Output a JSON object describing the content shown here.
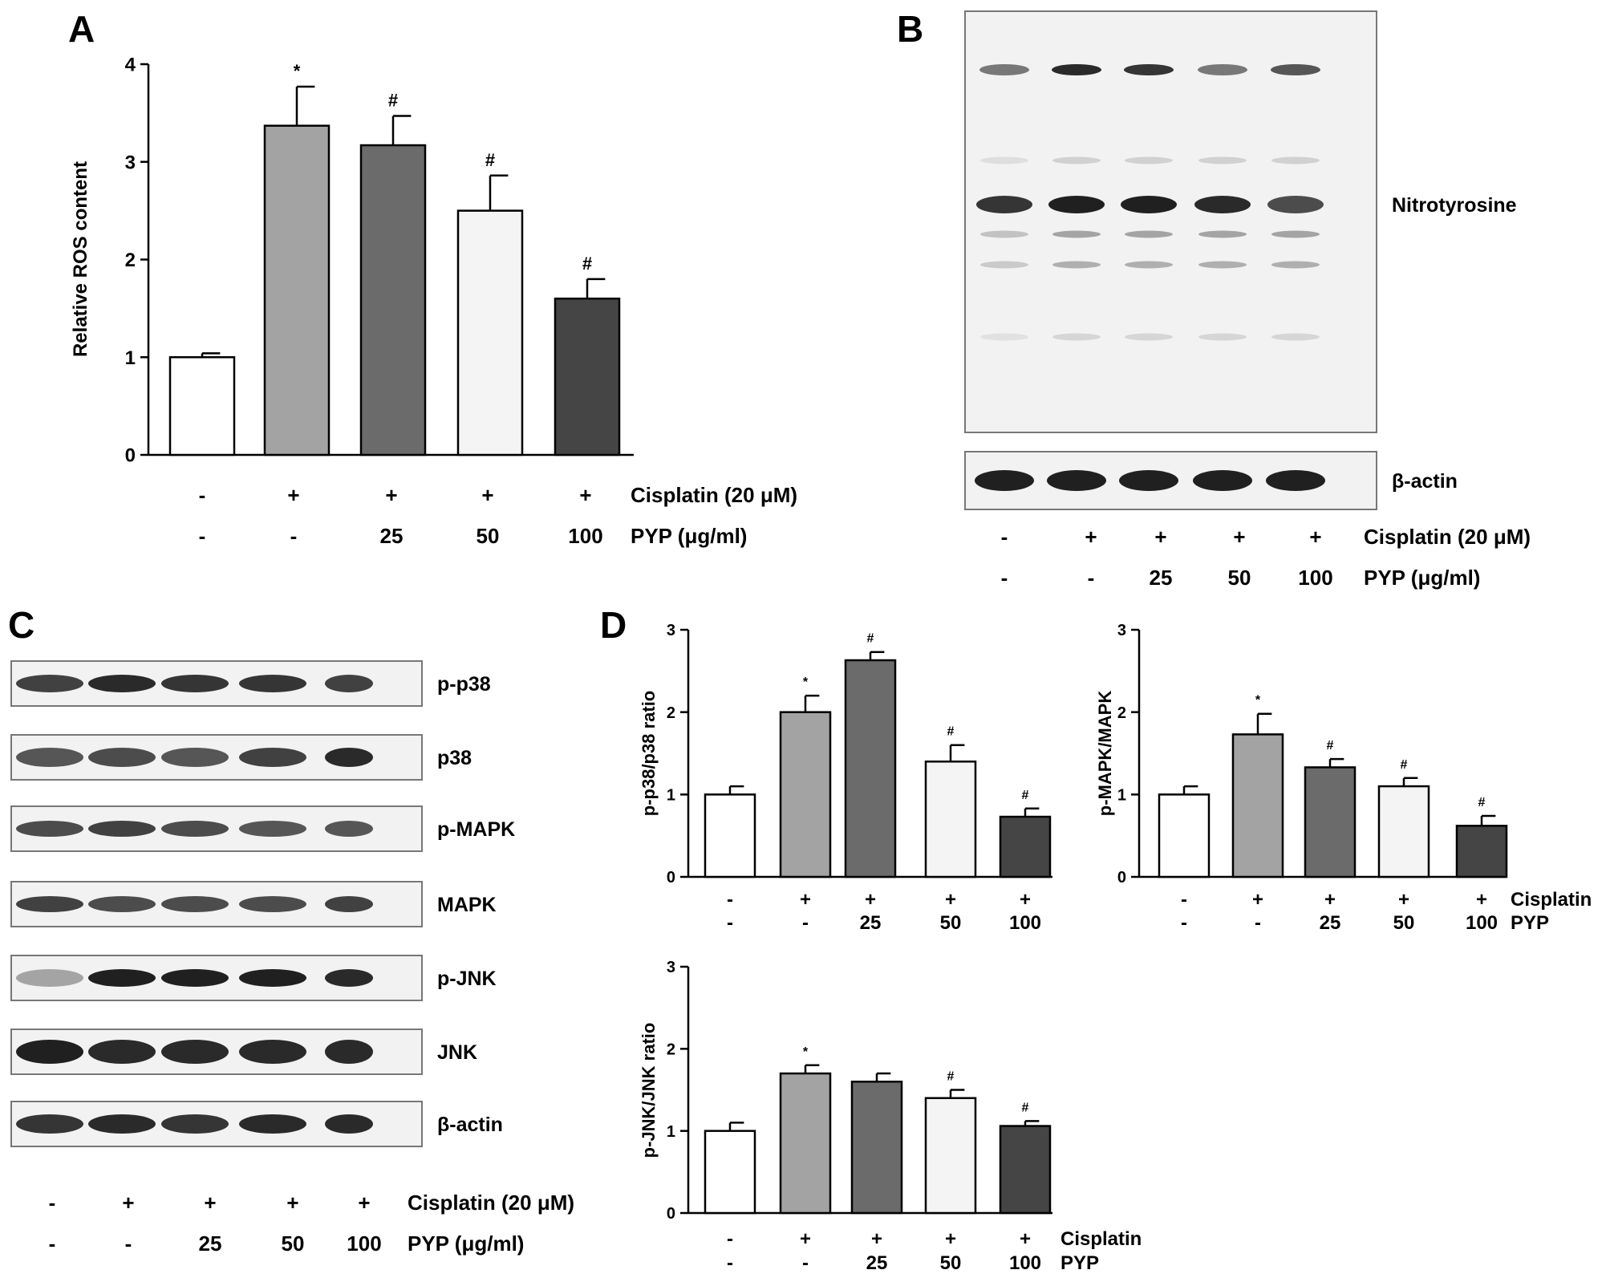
{
  "panels": {
    "A": "A",
    "B": "B",
    "C": "C",
    "D": "D"
  },
  "colors": {
    "bars": [
      "#ffffff",
      "#a3a3a3",
      "#6b6b6b",
      "#f4f4f4",
      "#454545"
    ],
    "blot_bg": "#f2f2f2",
    "band": "#141414"
  },
  "legend": {
    "cisplatin_long": "Cisplatin (20 μM)",
    "pyp_long": "PYP (μg/ml)",
    "cisplatin_short": "Cisplatin",
    "pyp_short": "PYP",
    "cisplatin_signs": [
      "-",
      "+",
      "+",
      "+",
      "+"
    ],
    "pyp_doses": [
      "-",
      "-",
      "25",
      "50",
      "100"
    ]
  },
  "blot_b": {
    "labels": [
      "Nitrotyrosine",
      "β-actin"
    ],
    "lanes": 5
  },
  "blot_c": {
    "labels": [
      "p-p38",
      "p38",
      "p-MAPK",
      "MAPK",
      "p-JNK",
      "JNK",
      "β-actin"
    ],
    "lanes": 5
  },
  "chart_data": [
    {
      "id": "A",
      "type": "bar",
      "title": "",
      "ylabel": "Relative ROS content",
      "ylim": [
        0,
        4
      ],
      "yticks": [
        0,
        1,
        2,
        3,
        4
      ],
      "values": [
        1.0,
        3.37,
        3.17,
        2.5,
        1.6
      ],
      "errors": [
        0.04,
        0.4,
        0.3,
        0.36,
        0.2
      ],
      "markers": [
        "",
        "*",
        "#",
        "#",
        "#"
      ]
    },
    {
      "id": "D1",
      "type": "bar",
      "title": "",
      "ylabel": "p-p38/p38 ratio",
      "ylim": [
        0,
        3
      ],
      "yticks": [
        0,
        1,
        2,
        3
      ],
      "values": [
        1.0,
        2.0,
        2.63,
        1.4,
        0.73
      ],
      "errors": [
        0.1,
        0.2,
        0.1,
        0.2,
        0.1
      ],
      "markers": [
        "",
        "*",
        "#",
        "#",
        "#"
      ]
    },
    {
      "id": "D2",
      "type": "bar",
      "title": "",
      "ylabel": "p-MAPK/MAPK",
      "ylim": [
        0,
        3
      ],
      "yticks": [
        0,
        1,
        2,
        3
      ],
      "values": [
        1.0,
        1.73,
        1.33,
        1.1,
        0.62
      ],
      "errors": [
        0.1,
        0.25,
        0.1,
        0.1,
        0.12
      ],
      "markers": [
        "",
        "*",
        "#",
        "#",
        "#"
      ]
    },
    {
      "id": "D3",
      "type": "bar",
      "title": "",
      "ylabel": "p-JNK/JNK ratio",
      "ylim": [
        0,
        3
      ],
      "yticks": [
        0,
        1,
        2,
        3
      ],
      "values": [
        1.0,
        1.7,
        1.6,
        1.4,
        1.06
      ],
      "errors": [
        0.1,
        0.1,
        0.1,
        0.1,
        0.06
      ],
      "markers": [
        "",
        "*",
        "",
        "#",
        "#"
      ]
    }
  ]
}
